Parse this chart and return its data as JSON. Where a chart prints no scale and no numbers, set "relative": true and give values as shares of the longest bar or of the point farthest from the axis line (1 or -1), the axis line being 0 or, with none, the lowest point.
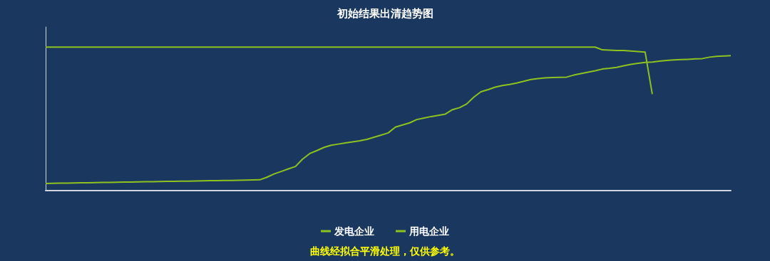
{
  "chart_data": {
    "type": "line",
    "title": "初始结果出清趋势图",
    "relative": true,
    "categories": [
      null,
      null,
      null,
      null,
      null,
      null,
      null,
      null,
      null,
      null,
      null,
      null,
      null,
      null,
      null,
      null,
      null,
      null,
      null,
      null,
      null,
      null,
      null,
      null,
      null,
      null,
      null,
      null,
      null,
      null,
      null,
      null,
      null,
      null,
      null,
      null,
      null,
      null,
      null,
      null,
      null,
      null,
      null,
      null,
      null,
      null,
      null,
      null,
      null,
      null,
      null,
      null,
      null,
      null,
      null,
      null,
      null,
      null,
      null,
      null,
      null,
      null,
      null,
      null,
      null,
      null,
      null,
      null,
      null,
      null,
      null,
      null,
      null,
      null,
      null,
      null,
      null,
      null,
      null,
      null,
      null,
      null,
      null,
      null,
      null,
      null,
      null,
      null,
      null,
      null,
      null,
      null,
      null,
      null,
      null,
      null,
      null
    ],
    "grid": false,
    "legend": "bottom",
    "marker": "none",
    "line_style": "solid",
    "series": [
      {
        "name": "发电企业",
        "color": "#8dc21f",
        "values": [
          0.05,
          0.051,
          0.052,
          0.052,
          0.053,
          0.054,
          0.055,
          0.056,
          0.057,
          0.057,
          0.058,
          0.059,
          0.06,
          0.061,
          0.062,
          0.062,
          0.063,
          0.064,
          0.065,
          0.066,
          0.066,
          0.067,
          0.068,
          0.069,
          0.07,
          0.071,
          0.071,
          0.072,
          0.073,
          0.074,
          0.075,
          0.093,
          0.116,
          0.133,
          0.151,
          0.168,
          0.219,
          0.258,
          0.279,
          0.301,
          0.316,
          0.324,
          0.332,
          0.339,
          0.347,
          0.357,
          0.372,
          0.387,
          0.402,
          0.442,
          0.457,
          0.472,
          0.495,
          0.506,
          0.516,
          0.524,
          0.533,
          0.564,
          0.578,
          0.604,
          0.652,
          0.689,
          0.704,
          0.721,
          0.732,
          0.74,
          0.75,
          0.762,
          0.774,
          0.781,
          0.786,
          0.788,
          0.789,
          0.791,
          0.805,
          0.815,
          0.825,
          0.835,
          0.847,
          0.852,
          0.859,
          0.87,
          0.88,
          0.887,
          0.893,
          0.896,
          0.902,
          0.907,
          0.911,
          0.913,
          0.915,
          0.918,
          0.92,
          0.93,
          0.936,
          0.938,
          0.94
        ]
      },
      {
        "name": "用电企业",
        "color": "#8dc21f",
        "values": [
          1,
          1,
          1,
          1,
          1,
          1,
          1,
          1,
          1,
          1,
          1,
          1,
          1,
          1,
          1,
          1,
          1,
          1,
          1,
          1,
          1,
          1,
          1,
          1,
          1,
          1,
          1,
          1,
          1,
          1,
          1,
          1,
          1,
          1,
          1,
          1,
          1,
          1,
          1,
          1,
          1,
          1,
          1,
          1,
          1,
          1,
          1,
          1,
          1,
          1,
          1,
          1,
          1,
          1,
          1,
          1,
          1,
          1,
          1,
          1,
          1,
          1,
          1,
          1,
          1,
          1,
          1,
          1,
          1,
          1,
          1,
          1,
          1,
          1,
          1,
          1,
          1,
          1,
          0.981,
          0.979,
          0.977,
          0.976,
          0.973,
          0.969,
          0.965,
          0.672,
          null,
          null,
          null,
          null,
          null,
          null,
          null,
          null,
          null,
          null,
          null
        ]
      }
    ],
    "annotations": [
      "曲线经拟合平滑处理，仅供参考。"
    ]
  }
}
